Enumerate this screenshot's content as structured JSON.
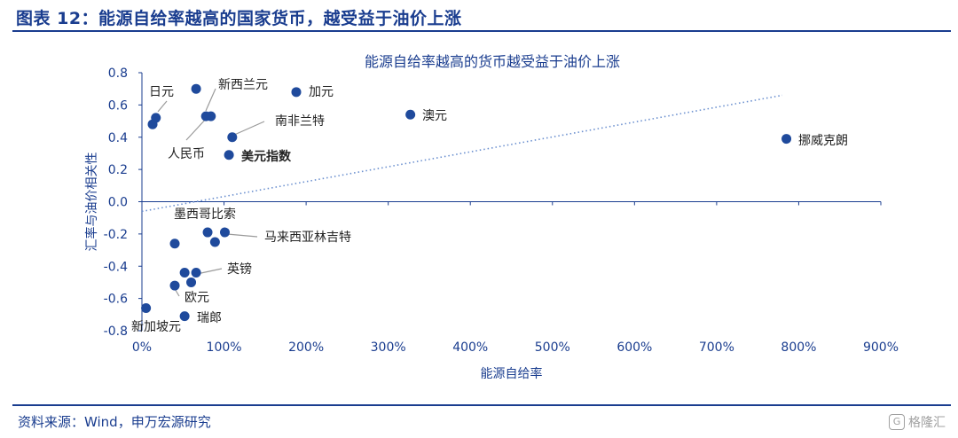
{
  "header": {
    "title": "图表 12：能源自给率越高的国家货币，越受益于油价上涨"
  },
  "footer": {
    "source": "资料来源：Wind，申万宏源研究"
  },
  "watermark": {
    "text": "格隆汇"
  },
  "colors": {
    "accent": "#1a3d8f",
    "point": "#1f4a9c",
    "trend": "#6a8fcf"
  },
  "chart_data": {
    "type": "scatter",
    "title": "能源自给率越高的货币越受益于油价上涨",
    "xlabel": "能源自给率",
    "ylabel": "汇率与油价相关性",
    "xlim": [
      0,
      900
    ],
    "ylim": [
      -0.8,
      0.8
    ],
    "x_ticks": [
      0,
      100,
      200,
      300,
      400,
      500,
      600,
      700,
      800,
      900
    ],
    "x_tick_labels": [
      "0%",
      "100%",
      "200%",
      "300%",
      "400%",
      "500%",
      "600%",
      "700%",
      "800%",
      "900%"
    ],
    "y_ticks": [
      0.8,
      0.6,
      0.4,
      0.2,
      0.0,
      -0.2,
      -0.4,
      -0.6,
      -0.8
    ],
    "y_tick_labels": [
      "0.8",
      "0.6",
      "0.4",
      "0.2",
      "0.0",
      "-0.2",
      "-0.4",
      "-0.6",
      "-0.8"
    ],
    "trendline": {
      "x": [
        0,
        780
      ],
      "y": [
        -0.06,
        0.66
      ]
    },
    "points": [
      {
        "label": "日元",
        "x": 17,
        "y": 0.52
      },
      {
        "label": "",
        "x": 13,
        "y": 0.48
      },
      {
        "label": "新西兰元",
        "x": 66,
        "y": 0.7
      },
      {
        "label": "人民币",
        "x": 84,
        "y": 0.53
      },
      {
        "label": "",
        "x": 78,
        "y": 0.53
      },
      {
        "label": "加元",
        "x": 188,
        "y": 0.68
      },
      {
        "label": "澳元",
        "x": 327,
        "y": 0.54
      },
      {
        "label": "南非兰特",
        "x": 110,
        "y": 0.4
      },
      {
        "label": "美元指数",
        "x": 106,
        "y": 0.29,
        "bold": true
      },
      {
        "label": "挪威克朗",
        "x": 785,
        "y": 0.39
      },
      {
        "label": "墨西哥比索",
        "x": 80,
        "y": -0.19
      },
      {
        "label": "马来西亚林吉特",
        "x": 101,
        "y": -0.19
      },
      {
        "label": "",
        "x": 89,
        "y": -0.25
      },
      {
        "label": "",
        "x": 40,
        "y": -0.26
      },
      {
        "label": "英镑",
        "x": 66,
        "y": -0.44
      },
      {
        "label": "",
        "x": 52,
        "y": -0.44
      },
      {
        "label": "",
        "x": 60,
        "y": -0.5
      },
      {
        "label": "欧元",
        "x": 40,
        "y": -0.52
      },
      {
        "label": "瑞郎",
        "x": 52,
        "y": -0.71
      },
      {
        "label": "新加坡元",
        "x": 5,
        "y": -0.66
      }
    ]
  }
}
